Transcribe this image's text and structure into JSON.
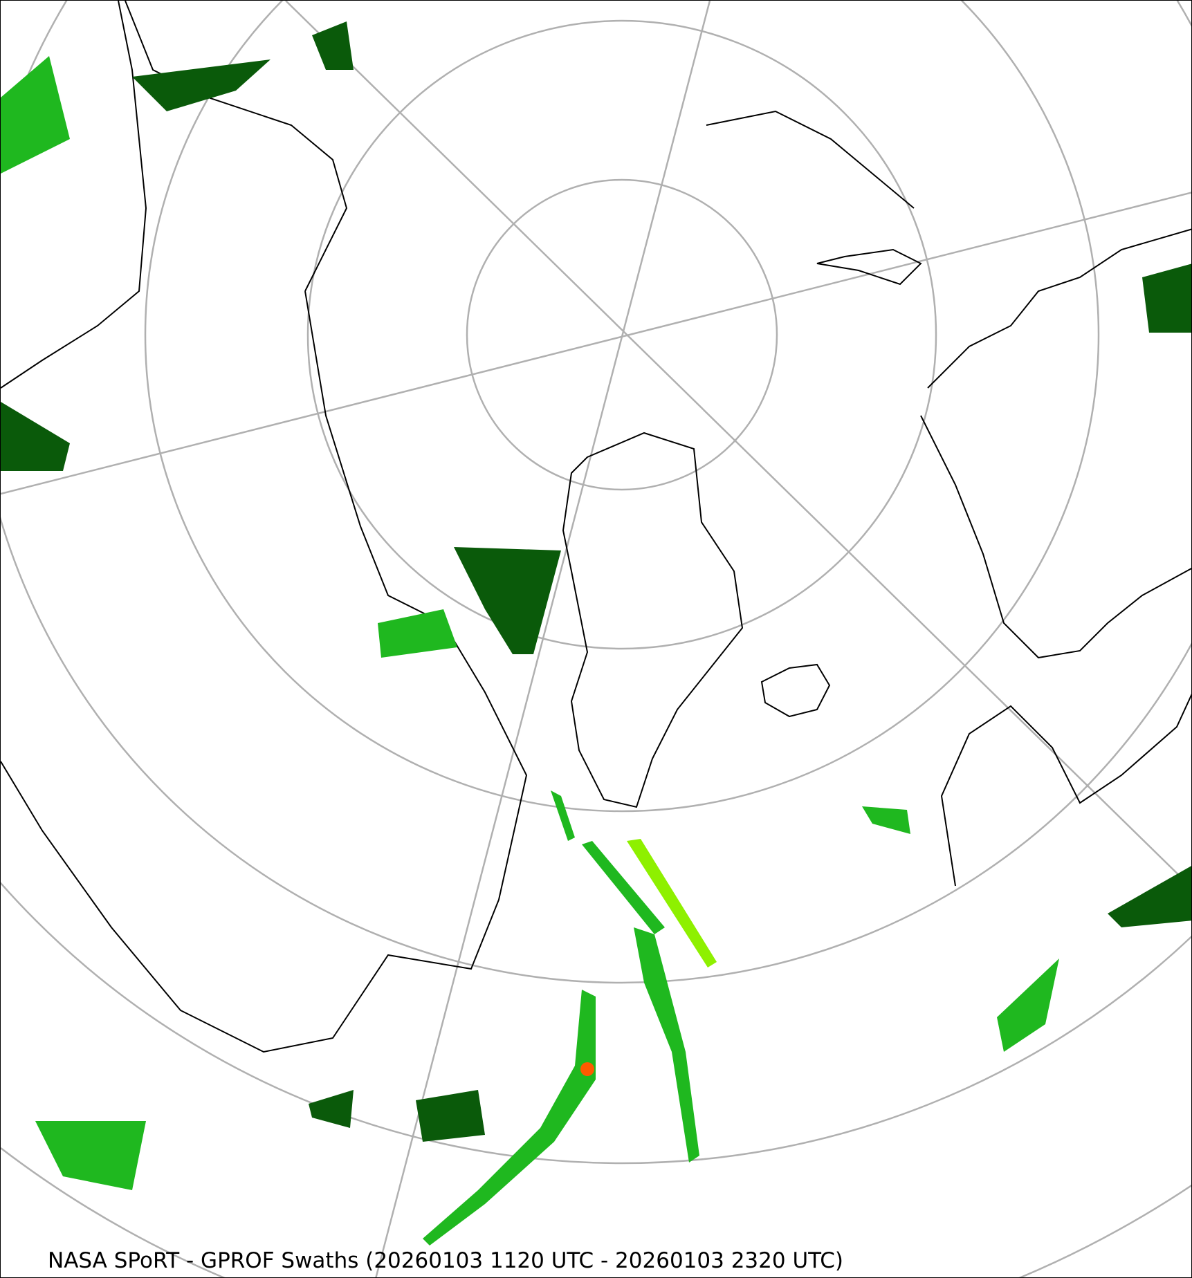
{
  "caption": "NASA SPoRT - GPROF Swaths (20260103 1120 UTC - 20260103 2320 UTC)",
  "projection": "north-polar-stereographic",
  "colors": {
    "graticule": "#b0b0b0",
    "coastline": "#000000",
    "precip_light": "#0a5a0a",
    "precip_moderate": "#1fb81f",
    "precip_heavy": "#8ef000",
    "precip_heavier": "#e8f000",
    "precip_extreme": "#ff5a00"
  }
}
